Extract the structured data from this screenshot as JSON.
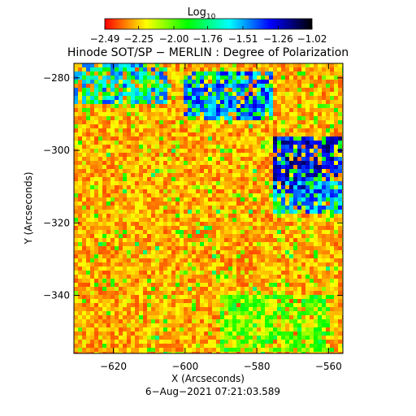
{
  "chart_data": {
    "type": "heatmap",
    "title": "Hinode SOT/SP − MERLIN : Degree of Polarization",
    "xlabel": "X (Arcseconds)",
    "ylabel": "Y (Arcseconds)",
    "timestamp": "6−Aug−2021 07:21:03.589",
    "xlim": [
      -631,
      -556
    ],
    "ylim": [
      -356,
      -276
    ],
    "x_ticks": [
      -620,
      -600,
      -580,
      -560
    ],
    "x_tick_labels": [
      "−620",
      "−600",
      "−580",
      "−560"
    ],
    "y_ticks": [
      -280,
      -300,
      -320,
      -340
    ],
    "y_tick_labels": [
      "−280",
      "−300",
      "−320",
      "−340"
    ],
    "colorbar": {
      "title_base": "Log",
      "title_sub": "10",
      "range": [
        -2.49,
        -1.02
      ],
      "tick_values": [
        -2.49,
        -2.25,
        -2.0,
        -1.76,
        -1.51,
        -1.26,
        -1.02
      ],
      "tick_labels": [
        "−2.49",
        "−2.25",
        "−2.00",
        "−1.76",
        "−1.51",
        "−1.26",
        "−1.02"
      ],
      "colors": [
        "#ff0000",
        "#ffff00",
        "#00ff00",
        "#00ffff",
        "#0000ff",
        "#000000"
      ]
    },
    "regions": [
      {
        "x": [
          -631,
          -605
        ],
        "y": [
          -287,
          -276
        ],
        "level": -1.55
      },
      {
        "x": [
          -600,
          -575
        ],
        "y": [
          -292,
          -278
        ],
        "level": -1.45
      },
      {
        "x": [
          -575,
          -556
        ],
        "y": [
          -312,
          -296
        ],
        "level": -1.3
      },
      {
        "x": [
          -576,
          -556
        ],
        "y": [
          -318,
          -308
        ],
        "level": -1.5
      },
      {
        "x": [
          -590,
          -560
        ],
        "y": [
          -355,
          -340
        ],
        "level": -2.05
      }
    ]
  }
}
